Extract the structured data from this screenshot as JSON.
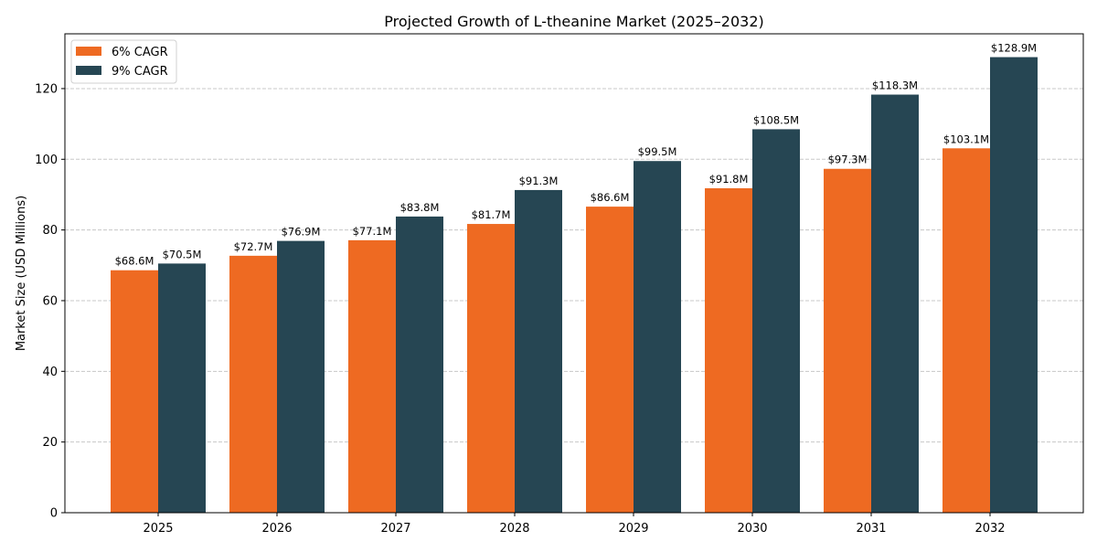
{
  "chart_data": {
    "type": "bar",
    "title": "Projected Growth of L-theanine Market (2025–2032)",
    "xlabel": "",
    "ylabel": "Market Size (USD Millions)",
    "ylim": [
      0,
      135.5
    ],
    "yticks": [
      0,
      20,
      40,
      60,
      80,
      100,
      120
    ],
    "grid": "y, dashed",
    "legend_position": "top-left",
    "categories": [
      "2025",
      "2026",
      "2027",
      "2028",
      "2029",
      "2030",
      "2031",
      "2032"
    ],
    "series": [
      {
        "name": "6% CAGR",
        "color": "#EE6A22",
        "values": [
          68.6,
          72.7,
          77.1,
          81.7,
          86.6,
          91.8,
          97.3,
          103.1
        ],
        "labels": [
          "$68.6M",
          "$72.7M",
          "$77.1M",
          "$81.7M",
          "$86.6M",
          "$91.8M",
          "$97.3M",
          "$103.1M"
        ]
      },
      {
        "name": "9% CAGR",
        "color": "#264653",
        "values": [
          70.5,
          76.9,
          83.8,
          91.3,
          99.5,
          108.5,
          118.3,
          128.9
        ],
        "labels": [
          "$70.5M",
          "$76.9M",
          "$83.8M",
          "$91.3M",
          "$99.5M",
          "$108.5M",
          "$118.3M",
          "$128.9M"
        ]
      }
    ]
  }
}
